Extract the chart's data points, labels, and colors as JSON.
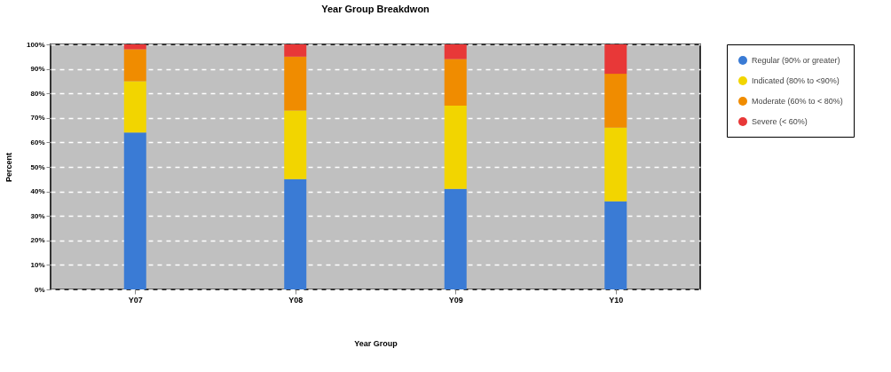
{
  "chart_data": {
    "type": "bar",
    "title": "Year Group Breakdwon",
    "xlabel": "Year Group",
    "ylabel": "Percent",
    "categories": [
      "Y07",
      "Y08",
      "Y09",
      "Y10"
    ],
    "stacked": true,
    "ylim": [
      0,
      100
    ],
    "yticks": [
      {
        "value": 0,
        "label": "0%"
      },
      {
        "value": 10,
        "label": "10%"
      },
      {
        "value": 20,
        "label": "20%"
      },
      {
        "value": 30,
        "label": "30%"
      },
      {
        "value": 40,
        "label": "40%"
      },
      {
        "value": 50,
        "label": "50%"
      },
      {
        "value": 60,
        "label": "60%"
      },
      {
        "value": 70,
        "label": "70%"
      },
      {
        "value": 80,
        "label": "80%"
      },
      {
        "value": 90,
        "label": "90%"
      },
      {
        "value": 100,
        "label": "100%"
      }
    ],
    "grid": "y",
    "legend": "right",
    "series": [
      {
        "name": "Regular (90% or greater)",
        "color": "#3a7bd5",
        "values": [
          64,
          45,
          41,
          36
        ]
      },
      {
        "name": "Indicated (80% to <90%)",
        "color": "#f2d500",
        "values": [
          21,
          28,
          34,
          30
        ]
      },
      {
        "name": "Moderate (60% to < 80%)",
        "color": "#f08c00",
        "values": [
          13,
          22,
          19,
          22
        ]
      },
      {
        "name": "Severe (< 60%)",
        "color": "#e83838",
        "values": [
          2,
          5,
          6,
          12
        ]
      }
    ]
  }
}
